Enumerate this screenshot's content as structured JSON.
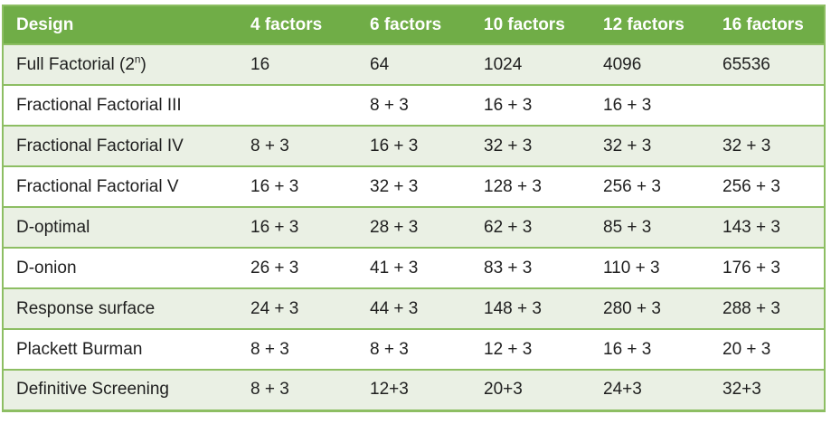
{
  "table": {
    "columns": [
      {
        "label": "Design"
      },
      {
        "label": "4 factors"
      },
      {
        "label": "6 factors"
      },
      {
        "label": "10 factors"
      },
      {
        "label": "12 factors"
      },
      {
        "label": "16 factors"
      }
    ],
    "rows": [
      {
        "design": "Full Factorial (2",
        "design_sup": "n",
        "design_end": ")",
        "values": [
          "16",
          "64",
          "1024",
          "4096",
          "65536"
        ]
      },
      {
        "design": "Fractional Factorial III",
        "design_sup": "",
        "design_end": "",
        "values": [
          "",
          "8 + 3",
          "16 + 3",
          "16 + 3",
          ""
        ]
      },
      {
        "design": "Fractional Factorial IV",
        "design_sup": "",
        "design_end": "",
        "values": [
          "8 + 3",
          "16 + 3",
          "32 + 3",
          "32 + 3",
          "32 + 3"
        ]
      },
      {
        "design": "Fractional Factorial V",
        "design_sup": "",
        "design_end": "",
        "values": [
          "16 + 3",
          "32 + 3",
          "128 + 3",
          "256 + 3",
          "256 + 3"
        ]
      },
      {
        "design": "D-optimal",
        "design_sup": "",
        "design_end": "",
        "values": [
          "16 + 3",
          "28 + 3",
          "62 + 3",
          "85 + 3",
          "143 + 3"
        ]
      },
      {
        "design": "D-onion",
        "design_sup": "",
        "design_end": "",
        "values": [
          "26 + 3",
          "41 + 3",
          "83 + 3",
          "110 + 3",
          "176 + 3"
        ]
      },
      {
        "design": "Response surface",
        "design_sup": "",
        "design_end": "",
        "values": [
          "24 + 3",
          "44 + 3",
          "148 + 3",
          "280 + 3",
          "288 + 3"
        ]
      },
      {
        "design": "Plackett Burman",
        "design_sup": "",
        "design_end": "",
        "values": [
          "8 + 3",
          "8 + 3",
          "12 + 3",
          "16 + 3",
          "20 + 3"
        ]
      },
      {
        "design": "Definitive Screening",
        "design_sup": "",
        "design_end": "",
        "values": [
          "8 + 3",
          "12+3",
          "20+3",
          "24+3",
          "32+3"
        ]
      }
    ],
    "colors": {
      "header_bg": "#70AD47",
      "header_text": "#FFFFFF",
      "band_row_bg": "#EAF0E4",
      "plain_row_bg": "#FFFFFF",
      "border": "#8DBE63",
      "body_text": "#1F1F1F"
    }
  }
}
